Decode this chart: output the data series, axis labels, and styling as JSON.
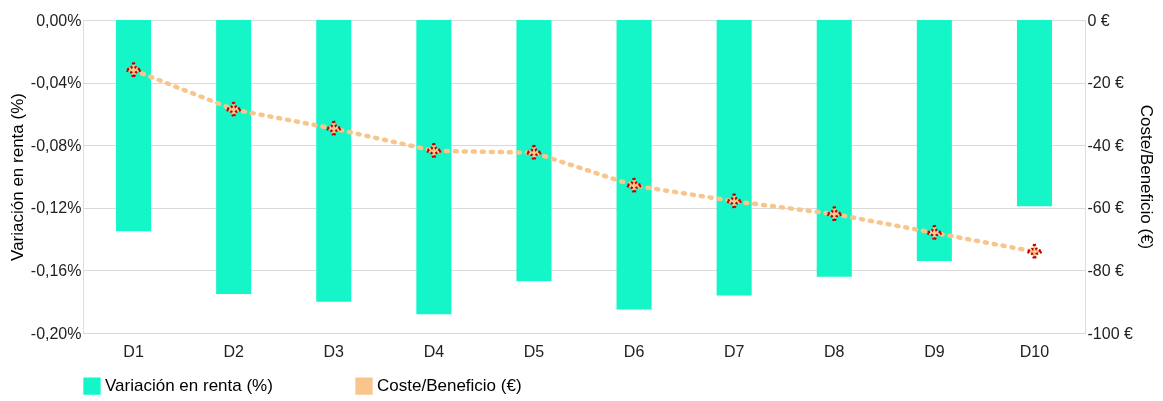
{
  "chart_data": {
    "type": "bar",
    "categories": [
      "D1",
      "D2",
      "D3",
      "D4",
      "D5",
      "D6",
      "D7",
      "D8",
      "D9",
      "D10"
    ],
    "series": [
      {
        "name": "Variación en renta (%)",
        "color": "#14f5c8",
        "values": [
          -0.135,
          -0.175,
          -0.18,
          -0.188,
          -0.167,
          -0.185,
          -0.176,
          -0.164,
          -0.154,
          -0.119
        ]
      },
      {
        "name": "Coste/Beneficio (€)",
        "type": "line",
        "axis": "y2",
        "color": "#f8c68c",
        "marker": "star",
        "line_style": "dotted",
        "values": [
          -16,
          -28.6,
          -34.7,
          -41.8,
          -42.4,
          -52.9,
          -57.9,
          -62,
          -68,
          -74
        ]
      }
    ],
    "ylabel": "Variación en renta (%)",
    "y2label": "Coste/Beneficio (€)",
    "ylim": [
      -0.2,
      0
    ],
    "yticks": [
      {
        "value": -0.2,
        "label": "-0,20%"
      },
      {
        "value": -0.16,
        "label": "-0,16%"
      },
      {
        "value": -0.12,
        "label": "-0,12%"
      },
      {
        "value": -0.08,
        "label": "-0,08%"
      },
      {
        "value": -0.04,
        "label": "-0,04%"
      },
      {
        "value": 0,
        "label": "0,00%"
      }
    ],
    "y2lim": [
      -100,
      0
    ],
    "y2ticks": [
      {
        "value": -100,
        "label": "-100 €"
      },
      {
        "value": -80,
        "label": "-80 €"
      },
      {
        "value": -60,
        "label": "-60 €"
      },
      {
        "value": -40,
        "label": "-40 €"
      },
      {
        "value": -20,
        "label": "-20 €"
      },
      {
        "value": 0,
        "label": "0 €"
      }
    ],
    "grid": "y",
    "legend": "bottom"
  }
}
